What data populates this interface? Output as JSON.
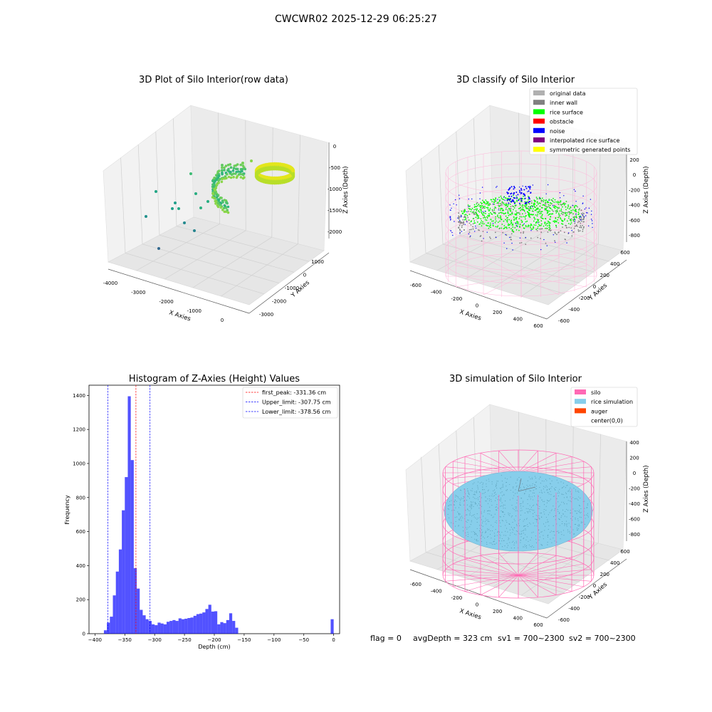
{
  "figure": {
    "suptitle": "CWCWR02 2025-12-29 06:25:27",
    "footer": {
      "flag": "flag = 0",
      "avg_depth": "avgDepth = 323 cm",
      "sv1": "sv1 = 700~2300",
      "sv2": "sv2 = 700~2300"
    }
  },
  "chart_data": [
    {
      "type": "scatter",
      "projection": "3d",
      "title": "3D Plot of Silo Interior(row data)",
      "xlabel": "X Axies",
      "ylabel": "Y Axies",
      "zlabel": "Z Axies (Depth)",
      "x_ticks": [
        "-4000",
        "-3000",
        "-2000",
        "-1000",
        "0"
      ],
      "y_ticks": [
        "1000",
        "0",
        "-1000",
        "-2000",
        "-3000"
      ],
      "z_ticks": [
        "0",
        "-500",
        "-1000",
        "-1500",
        "-2000"
      ],
      "colormap": "viridis",
      "notes_points": [
        {
          "x": -250,
          "y": 700,
          "z": -300
        },
        {
          "x": -800,
          "y": 300,
          "z": -700
        },
        {
          "x": -1500,
          "y": -200,
          "z": -1300
        },
        {
          "x": -2500,
          "y": -900,
          "z": -1500
        },
        {
          "x": -3400,
          "y": -2200,
          "z": -2100
        }
      ]
    },
    {
      "type": "scatter",
      "projection": "3d",
      "title": "3D classify of Silo Interior",
      "xlabel": "X Axies",
      "ylabel": "Y Axies",
      "zlabel": "Z Axies (Depth)",
      "x_ticks": [
        "-600",
        "-400",
        "-200",
        "0",
        "200",
        "400",
        "600"
      ],
      "y_ticks": [
        "600",
        "400",
        "200",
        "0",
        "-200",
        "-400",
        "-600"
      ],
      "z_ticks": [
        "200",
        "0",
        "-200",
        "-400",
        "-600",
        "-800"
      ],
      "legend": [
        {
          "label": "original data",
          "color": "#b0b0b0"
        },
        {
          "label": "inner wall",
          "color": "#808080"
        },
        {
          "label": "rice surface",
          "color": "#00ff00"
        },
        {
          "label": "obstacle",
          "color": "#ff0000"
        },
        {
          "label": "noise",
          "color": "#0000ff"
        },
        {
          "label": "interpolated rice surface",
          "color": "#800080"
        },
        {
          "label": "symmetric generated points",
          "color": "#ffff00"
        }
      ],
      "legend_position": "upper right"
    },
    {
      "type": "bar",
      "title": "Histogram of Z-Axies (Height) Values",
      "xlabel": "Depth (cm)",
      "ylabel": "Frequency",
      "xlim": [
        -410,
        10
      ],
      "ylim": [
        0,
        1460
      ],
      "x_ticks": [
        -400,
        -350,
        -300,
        -250,
        -200,
        -150,
        -100,
        -50,
        0
      ],
      "y_ticks": [
        0,
        200,
        400,
        600,
        800,
        1000,
        1200,
        1400
      ],
      "bar_color": "#0000ff",
      "bin_width": 5,
      "bins": [
        {
          "x": -382.5,
          "v": 20
        },
        {
          "x": -377.5,
          "v": 65
        },
        {
          "x": -372.5,
          "v": 100
        },
        {
          "x": -367.5,
          "v": 225
        },
        {
          "x": -362.5,
          "v": 365
        },
        {
          "x": -357.5,
          "v": 495
        },
        {
          "x": -352.5,
          "v": 725
        },
        {
          "x": -347.5,
          "v": 920
        },
        {
          "x": -342.5,
          "v": 1395
        },
        {
          "x": -337.5,
          "v": 1020
        },
        {
          "x": -332.5,
          "v": 385
        },
        {
          "x": -327.5,
          "v": 265
        },
        {
          "x": -322.5,
          "v": 140
        },
        {
          "x": -317.5,
          "v": 108
        },
        {
          "x": -312.5,
          "v": 85
        },
        {
          "x": -307.5,
          "v": 75
        },
        {
          "x": -302.5,
          "v": 55
        },
        {
          "x": -297.5,
          "v": 50
        },
        {
          "x": -292.5,
          "v": 65
        },
        {
          "x": -287.5,
          "v": 60
        },
        {
          "x": -282.5,
          "v": 55
        },
        {
          "x": -277.5,
          "v": 70
        },
        {
          "x": -272.5,
          "v": 75
        },
        {
          "x": -267.5,
          "v": 80
        },
        {
          "x": -262.5,
          "v": 75
        },
        {
          "x": -257.5,
          "v": 90
        },
        {
          "x": -252.5,
          "v": 85
        },
        {
          "x": -247.5,
          "v": 88
        },
        {
          "x": -242.5,
          "v": 92
        },
        {
          "x": -237.5,
          "v": 95
        },
        {
          "x": -232.5,
          "v": 105
        },
        {
          "x": -227.5,
          "v": 115
        },
        {
          "x": -222.5,
          "v": 118
        },
        {
          "x": -217.5,
          "v": 125
        },
        {
          "x": -212.5,
          "v": 145
        },
        {
          "x": -207.5,
          "v": 170
        },
        {
          "x": -202.5,
          "v": 130
        },
        {
          "x": -197.5,
          "v": 132
        },
        {
          "x": -192.5,
          "v": 55
        },
        {
          "x": -187.5,
          "v": 68
        },
        {
          "x": -182.5,
          "v": 62
        },
        {
          "x": -177.5,
          "v": 80
        },
        {
          "x": -172.5,
          "v": 120
        },
        {
          "x": -167.5,
          "v": 75
        },
        {
          "x": -162.5,
          "v": 35
        },
        {
          "x": -2.5,
          "v": 85
        }
      ],
      "vlines": [
        {
          "label": "first_peak: -331.36 cm",
          "x": -331.36,
          "color": "#ff0000"
        },
        {
          "label": "Upper_limit: -307.75 cm",
          "x": -307.75,
          "color": "#0000ff"
        },
        {
          "label": "Lower_limit: -378.56 cm",
          "x": -378.56,
          "color": "#0000ff"
        }
      ],
      "legend_position": "upper right"
    },
    {
      "type": "surface",
      "projection": "3d",
      "title": "3D simulation of Silo Interior",
      "xlabel": "X Axies",
      "ylabel": "Y Axies",
      "zlabel": "Z Axies (Depth)",
      "x_ticks": [
        "-600",
        "-400",
        "-200",
        "0",
        "200",
        "400",
        "600"
      ],
      "y_ticks": [
        "600",
        "400",
        "200",
        "0",
        "-200",
        "-400",
        "-600"
      ],
      "z_ticks": [
        "400",
        "200",
        "0",
        "-200",
        "-400",
        "-600",
        "-800"
      ],
      "legend": [
        {
          "label": "silo",
          "color": "#ff69b4"
        },
        {
          "label": "rice simulation",
          "color": "#87ceeb"
        },
        {
          "label": "auger",
          "color": "#ff4500"
        },
        {
          "label": "center(0,0)",
          "color": "none"
        }
      ],
      "legend_position": "upper right"
    }
  ]
}
